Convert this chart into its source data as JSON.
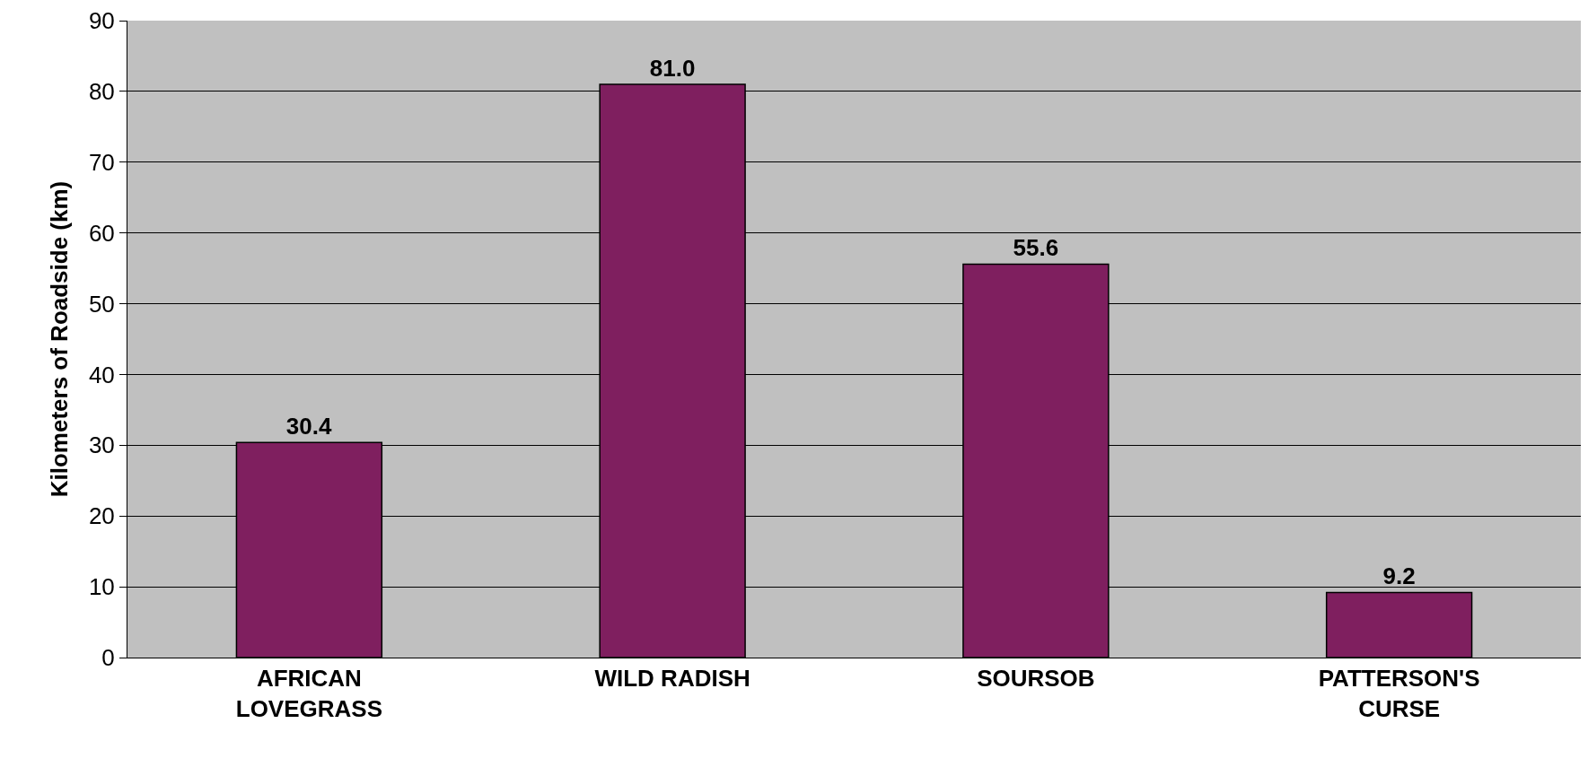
{
  "chart_data": {
    "type": "bar",
    "ylabel": "Kilometers of Roadside (km)",
    "categories": [
      "AFRICAN\nLOVEGRASS",
      "WILD RADISH",
      "SOURSOB",
      "PATTERSON'S\nCURSE"
    ],
    "values": [
      30.4,
      81.0,
      55.6,
      9.2
    ],
    "color": "#7f1f5f",
    "ylim": [
      0,
      90
    ],
    "yticks": [
      0,
      10,
      20,
      30,
      40,
      50,
      60,
      70,
      80,
      90
    ],
    "grid": "y",
    "value_labels": [
      "30.4",
      "81.0",
      "55.6",
      "9.2"
    ]
  }
}
